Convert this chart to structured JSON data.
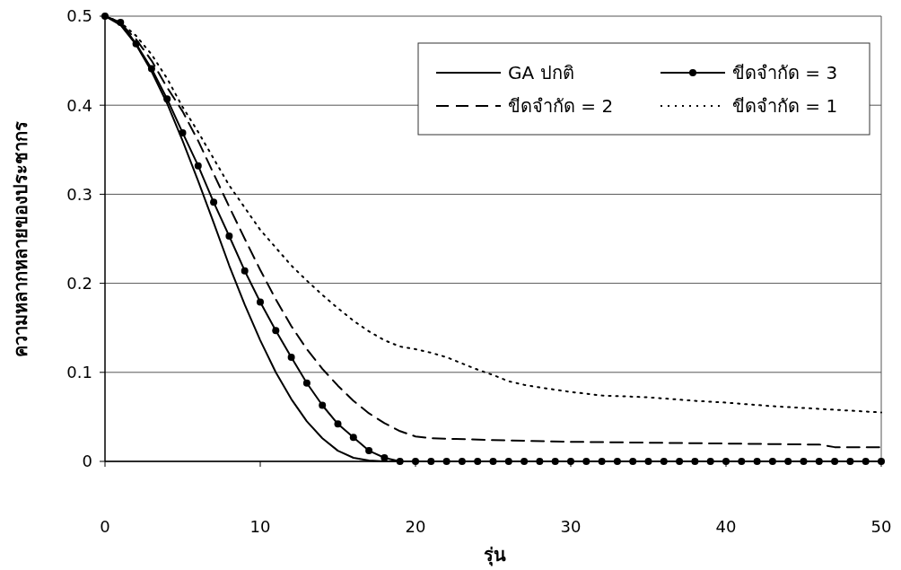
{
  "chart_data": {
    "type": "line",
    "xlabel": "รุ่น",
    "ylabel": "ความหลากหลายของประชากร",
    "xlim": [
      0,
      50
    ],
    "ylim": [
      0,
      0.5
    ],
    "xticks": [
      0,
      10,
      20,
      30,
      40,
      50
    ],
    "yticks": [
      0,
      0.1,
      0.2,
      0.3,
      0.4,
      0.5
    ],
    "grid": "y",
    "legend": "top right",
    "series": [
      {
        "name": "GA ปกติ",
        "color": "#000000",
        "line_style": "solid",
        "marker": "none",
        "x": [
          0,
          1,
          2,
          3,
          4,
          5,
          6,
          7,
          8,
          9,
          10,
          11,
          12,
          13,
          14,
          15,
          16,
          17,
          18,
          20
        ],
        "values": [
          0.5,
          0.49,
          0.468,
          0.438,
          0.402,
          0.36,
          0.315,
          0.268,
          0.22,
          0.176,
          0.136,
          0.1,
          0.07,
          0.045,
          0.026,
          0.012,
          0.004,
          0.001,
          0,
          0
        ]
      },
      {
        "name": "ขีดจำกัด = 3",
        "color": "#000000",
        "line_style": "solid",
        "marker": "circle",
        "x": [
          0,
          1,
          2,
          3,
          4,
          5,
          6,
          7,
          8,
          9,
          10,
          11,
          12,
          13,
          14,
          15,
          16,
          17,
          18,
          19,
          20,
          21,
          22,
          23,
          24,
          25,
          26,
          27,
          28,
          29,
          30,
          31,
          32,
          33,
          34,
          35,
          36,
          37,
          38,
          39,
          40,
          41,
          42,
          43,
          44,
          45,
          46,
          47,
          48,
          49,
          50
        ],
        "values": [
          0.5,
          0.493,
          0.469,
          0.441,
          0.407,
          0.369,
          0.332,
          0.291,
          0.253,
          0.214,
          0.179,
          0.147,
          0.117,
          0.088,
          0.063,
          0.042,
          0.027,
          0.012,
          0.004,
          0,
          0,
          0,
          0,
          0,
          0,
          0,
          0,
          0,
          0,
          0,
          0,
          0,
          0,
          0,
          0,
          0,
          0,
          0,
          0,
          0,
          0,
          0,
          0,
          0,
          0,
          0,
          0,
          0,
          0,
          0,
          0
        ]
      },
      {
        "name": "ขีดจำกัด = 2",
        "color": "#000000",
        "line_style": "dashed",
        "marker": "none",
        "x": [
          0,
          1,
          2,
          3,
          4,
          5,
          6,
          7,
          8,
          9,
          10,
          11,
          12,
          13,
          14,
          15,
          16,
          17,
          18,
          19,
          20,
          21,
          25,
          30,
          35,
          40,
          45,
          46,
          47,
          50
        ],
        "values": [
          0.5,
          0.492,
          0.474,
          0.45,
          0.42,
          0.393,
          0.36,
          0.323,
          0.286,
          0.25,
          0.215,
          0.182,
          0.152,
          0.126,
          0.104,
          0.085,
          0.068,
          0.054,
          0.043,
          0.034,
          0.028,
          0.026,
          0.024,
          0.022,
          0.021,
          0.02,
          0.019,
          0.019,
          0.016,
          0.016
        ]
      },
      {
        "name": "ขีดจำกัด = 1",
        "color": "#000000",
        "line_style": "dotted",
        "marker": "none",
        "x": [
          0,
          1,
          2,
          3,
          4,
          5,
          6,
          7,
          8,
          9,
          10,
          11,
          12,
          13,
          14,
          15,
          16,
          17,
          18,
          19,
          20,
          21,
          22,
          23,
          24,
          25,
          26,
          27,
          28,
          30,
          32,
          35,
          38,
          40,
          43,
          46,
          48,
          50
        ],
        "values": [
          0.5,
          0.493,
          0.478,
          0.457,
          0.43,
          0.398,
          0.37,
          0.34,
          0.31,
          0.285,
          0.26,
          0.24,
          0.22,
          0.203,
          0.187,
          0.172,
          0.158,
          0.146,
          0.136,
          0.129,
          0.126,
          0.122,
          0.117,
          0.11,
          0.103,
          0.097,
          0.09,
          0.086,
          0.083,
          0.078,
          0.074,
          0.072,
          0.068,
          0.066,
          0.062,
          0.059,
          0.057,
          0.055
        ]
      }
    ]
  }
}
